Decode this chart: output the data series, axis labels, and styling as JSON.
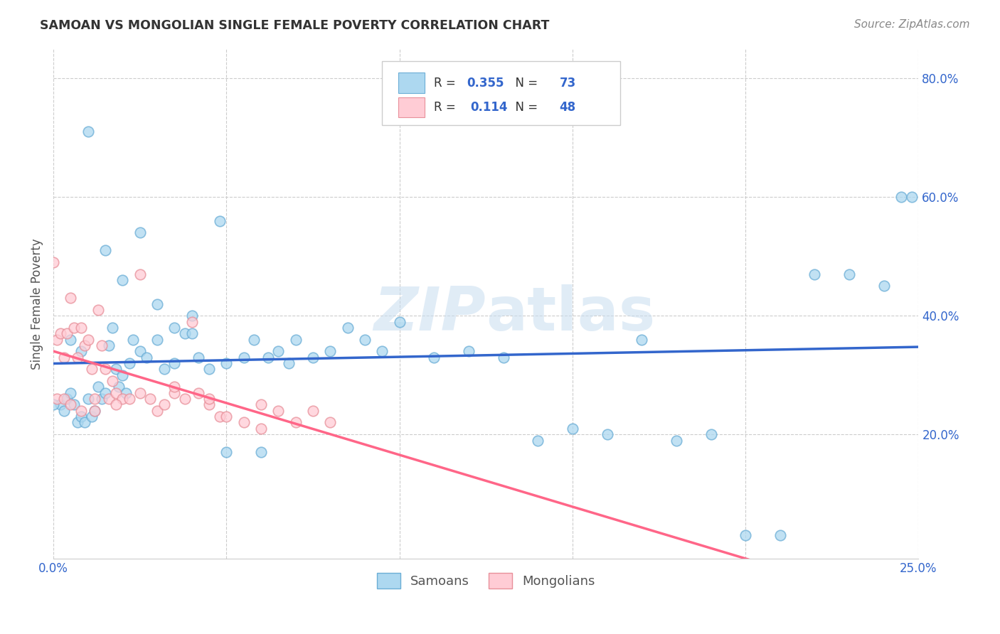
{
  "title": "SAMOAN VS MONGOLIAN SINGLE FEMALE POVERTY CORRELATION CHART",
  "source": "Source: ZipAtlas.com",
  "ylabel": "Single Female Poverty",
  "legend_samoans": "Samoans",
  "legend_mongolians": "Mongolians",
  "r_samoans": 0.355,
  "n_samoans": 73,
  "r_mongolians": 0.114,
  "n_mongolians": 48,
  "color_samoans_fill": "#ADD8F0",
  "color_samoans_edge": "#6baed6",
  "color_mongolians_fill": "#FFCCD5",
  "color_mongolians_edge": "#e8909a",
  "color_line_samoans": "#3366CC",
  "color_line_mongolians": "#FF6688",
  "color_axis_text": "#3366CC",
  "color_title": "#333333",
  "background_color": "#FFFFFF",
  "xlim": [
    0.0,
    0.25
  ],
  "ylim": [
    -0.01,
    0.85
  ],
  "yticks": [
    0.2,
    0.4,
    0.6,
    0.8
  ],
  "ytick_labels": [
    "20.0%",
    "40.0%",
    "60.0%",
    "80.0%"
  ],
  "samoans_x": [
    0.002,
    0.003,
    0.004,
    0.005,
    0.006,
    0.007,
    0.008,
    0.009,
    0.01,
    0.011,
    0.012,
    0.013,
    0.014,
    0.015,
    0.016,
    0.017,
    0.018,
    0.019,
    0.02,
    0.021,
    0.022,
    0.023,
    0.025,
    0.027,
    0.03,
    0.032,
    0.035,
    0.038,
    0.04,
    0.042,
    0.045,
    0.048,
    0.05,
    0.055,
    0.058,
    0.062,
    0.065,
    0.068,
    0.07,
    0.075,
    0.08,
    0.085,
    0.09,
    0.095,
    0.1,
    0.11,
    0.12,
    0.13,
    0.14,
    0.15,
    0.16,
    0.17,
    0.18,
    0.19,
    0.2,
    0.21,
    0.22,
    0.23,
    0.24,
    0.245,
    0.248,
    0.005,
    0.008,
    0.01,
    0.015,
    0.02,
    0.025,
    0.03,
    0.035,
    0.04,
    0.05,
    0.06,
    0.0
  ],
  "samoans_y": [
    0.25,
    0.24,
    0.26,
    0.27,
    0.25,
    0.22,
    0.23,
    0.22,
    0.26,
    0.23,
    0.24,
    0.28,
    0.26,
    0.27,
    0.35,
    0.38,
    0.31,
    0.28,
    0.3,
    0.27,
    0.32,
    0.36,
    0.34,
    0.33,
    0.36,
    0.31,
    0.38,
    0.37,
    0.37,
    0.33,
    0.31,
    0.56,
    0.32,
    0.33,
    0.36,
    0.33,
    0.34,
    0.32,
    0.36,
    0.33,
    0.34,
    0.38,
    0.36,
    0.34,
    0.39,
    0.33,
    0.34,
    0.33,
    0.19,
    0.21,
    0.2,
    0.36,
    0.19,
    0.2,
    0.03,
    0.03,
    0.47,
    0.47,
    0.45,
    0.6,
    0.6,
    0.36,
    0.34,
    0.71,
    0.51,
    0.46,
    0.54,
    0.42,
    0.32,
    0.4,
    0.17,
    0.17,
    0.25
  ],
  "mongolians_x": [
    0.0,
    0.001,
    0.002,
    0.003,
    0.004,
    0.005,
    0.006,
    0.007,
    0.008,
    0.009,
    0.01,
    0.011,
    0.012,
    0.013,
    0.014,
    0.015,
    0.016,
    0.017,
    0.018,
    0.02,
    0.022,
    0.025,
    0.028,
    0.03,
    0.032,
    0.035,
    0.038,
    0.04,
    0.042,
    0.045,
    0.048,
    0.05,
    0.055,
    0.06,
    0.065,
    0.07,
    0.075,
    0.08,
    0.001,
    0.003,
    0.005,
    0.008,
    0.012,
    0.018,
    0.025,
    0.035,
    0.045,
    0.06
  ],
  "mongolians_y": [
    0.49,
    0.36,
    0.37,
    0.33,
    0.37,
    0.43,
    0.38,
    0.33,
    0.38,
    0.35,
    0.36,
    0.31,
    0.26,
    0.41,
    0.35,
    0.31,
    0.26,
    0.29,
    0.27,
    0.26,
    0.26,
    0.47,
    0.26,
    0.24,
    0.25,
    0.27,
    0.26,
    0.39,
    0.27,
    0.25,
    0.23,
    0.23,
    0.22,
    0.21,
    0.24,
    0.22,
    0.24,
    0.22,
    0.26,
    0.26,
    0.25,
    0.24,
    0.24,
    0.25,
    0.27,
    0.28,
    0.26,
    0.25
  ]
}
